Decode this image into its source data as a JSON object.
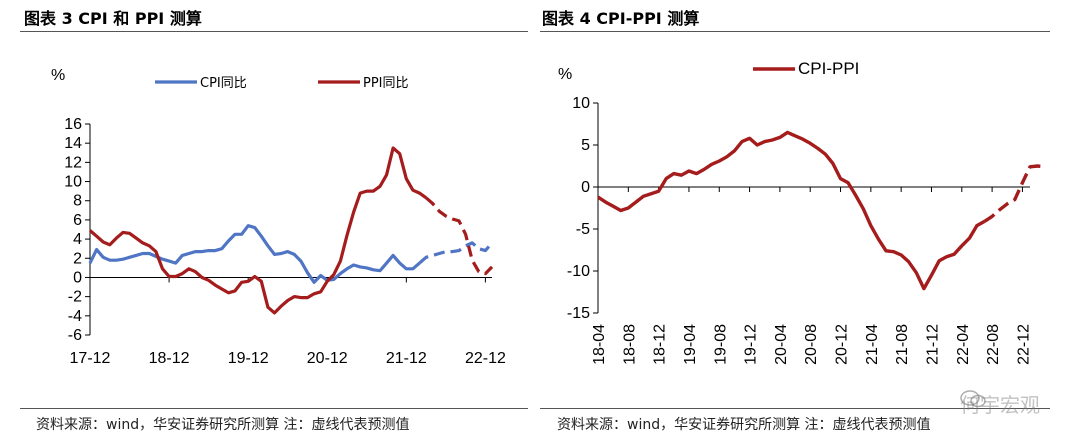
{
  "figure_left": {
    "title": "图表 3 CPI 和 PPI 测算",
    "source": "资料来源：wind，华安证券研究所测算 注：虚线代表预测值"
  },
  "figure_right": {
    "title": "图表 4 CPI-PPI 测算",
    "source": "资料来源：wind，华安证券研究所测算 注：虚线代表预测值"
  },
  "watermark": {
    "text": "何宇宏观",
    "icon": "wechat-icon"
  },
  "chart_data": [
    {
      "type": "line",
      "unit_label": "%",
      "ylim": [
        -6,
        16
      ],
      "yticks": [
        -6,
        -4,
        -2,
        0,
        2,
        4,
        6,
        8,
        10,
        12,
        14,
        16
      ],
      "xlim": [
        0,
        61
      ],
      "x_ticks": [
        {
          "label": "17-12",
          "index": 0
        },
        {
          "label": "18-12",
          "index": 12
        },
        {
          "label": "19-12",
          "index": 24
        },
        {
          "label": "20-12",
          "index": 36
        },
        {
          "label": "21-12",
          "index": 48
        },
        {
          "label": "22-12",
          "index": 60
        }
      ],
      "legend": "top",
      "series": [
        {
          "name": "CPI同比",
          "color": "#4f75c4",
          "actual": [
            [
              0,
              1.5
            ],
            [
              1,
              2.9
            ],
            [
              2,
              2.1
            ],
            [
              3,
              1.8
            ],
            [
              4,
              1.8
            ],
            [
              5,
              1.9
            ],
            [
              6,
              2.1
            ],
            [
              7,
              2.3
            ],
            [
              8,
              2.5
            ],
            [
              9,
              2.5
            ],
            [
              10,
              2.2
            ],
            [
              11,
              1.9
            ],
            [
              12,
              1.7
            ],
            [
              13,
              1.5
            ],
            [
              14,
              2.3
            ],
            [
              15,
              2.5
            ],
            [
              16,
              2.7
            ],
            [
              17,
              2.7
            ],
            [
              18,
              2.8
            ],
            [
              19,
              2.8
            ],
            [
              20,
              3.0
            ],
            [
              21,
              3.8
            ],
            [
              22,
              4.5
            ],
            [
              23,
              4.5
            ],
            [
              24,
              5.4
            ],
            [
              25,
              5.2
            ],
            [
              26,
              4.3
            ],
            [
              27,
              3.3
            ],
            [
              28,
              2.4
            ],
            [
              29,
              2.5
            ],
            [
              30,
              2.7
            ],
            [
              31,
              2.4
            ],
            [
              32,
              1.7
            ],
            [
              33,
              0.5
            ],
            [
              34,
              -0.5
            ],
            [
              35,
              0.2
            ],
            [
              36,
              -0.3
            ],
            [
              37,
              -0.2
            ],
            [
              38,
              0.4
            ],
            [
              39,
              0.9
            ],
            [
              40,
              1.3
            ],
            [
              41,
              1.1
            ],
            [
              42,
              1.0
            ],
            [
              43,
              0.8
            ],
            [
              44,
              0.7
            ],
            [
              45,
              1.5
            ],
            [
              46,
              2.3
            ],
            [
              47,
              1.5
            ],
            [
              48,
              0.9
            ],
            [
              49,
              0.9
            ],
            [
              50,
              1.5
            ]
          ],
          "forecast": [
            [
              50,
              1.5
            ],
            [
              51,
              2.1
            ],
            [
              52,
              2.3
            ],
            [
              53,
              2.5
            ],
            [
              54,
              2.7
            ],
            [
              55,
              2.7
            ],
            [
              56,
              2.8
            ],
            [
              57,
              3.3
            ],
            [
              58,
              3.6
            ],
            [
              59,
              3.0
            ],
            [
              60,
              2.8
            ],
            [
              61,
              3.6
            ]
          ]
        },
        {
          "name": "PPI同比",
          "color": "#a51c1c",
          "actual": [
            [
              0,
              4.9
            ],
            [
              1,
              4.3
            ],
            [
              2,
              3.7
            ],
            [
              3,
              3.4
            ],
            [
              4,
              4.1
            ],
            [
              5,
              4.7
            ],
            [
              6,
              4.6
            ],
            [
              7,
              4.1
            ],
            [
              8,
              3.6
            ],
            [
              9,
              3.3
            ],
            [
              10,
              2.7
            ],
            [
              11,
              0.9
            ],
            [
              12,
              0.1
            ],
            [
              13,
              0.1
            ],
            [
              14,
              0.4
            ],
            [
              15,
              0.9
            ],
            [
              16,
              0.6
            ],
            [
              17,
              0.0
            ],
            [
              18,
              -0.3
            ],
            [
              19,
              -0.8
            ],
            [
              20,
              -1.2
            ],
            [
              21,
              -1.6
            ],
            [
              22,
              -1.4
            ],
            [
              23,
              -0.5
            ],
            [
              24,
              -0.4
            ],
            [
              25,
              0.1
            ],
            [
              26,
              -0.4
            ],
            [
              27,
              -3.1
            ],
            [
              28,
              -3.7
            ],
            [
              29,
              -3.0
            ],
            [
              30,
              -2.4
            ],
            [
              31,
              -2.0
            ],
            [
              32,
              -2.1
            ],
            [
              33,
              -2.1
            ],
            [
              34,
              -1.7
            ],
            [
              35,
              -1.5
            ],
            [
              36,
              -0.4
            ],
            [
              37,
              0.3
            ],
            [
              38,
              1.7
            ],
            [
              39,
              4.4
            ],
            [
              40,
              6.8
            ],
            [
              41,
              8.8
            ],
            [
              42,
              9.0
            ],
            [
              43,
              9.0
            ],
            [
              44,
              9.5
            ],
            [
              45,
              10.7
            ],
            [
              46,
              13.5
            ],
            [
              47,
              12.9
            ],
            [
              48,
              10.3
            ],
            [
              49,
              9.1
            ],
            [
              50,
              8.8
            ],
            [
              51,
              8.3
            ]
          ],
          "forecast": [
            [
              51,
              8.3
            ],
            [
              52,
              7.7
            ],
            [
              53,
              6.9
            ],
            [
              54,
              6.4
            ],
            [
              55,
              6.1
            ],
            [
              56,
              5.9
            ],
            [
              57,
              4.5
            ],
            [
              58,
              1.8
            ],
            [
              59,
              0.6
            ],
            [
              60,
              0.4
            ],
            [
              61,
              1.1
            ]
          ]
        }
      ]
    },
    {
      "type": "line",
      "unit_label": "%",
      "ylim": [
        -15,
        10
      ],
      "yticks": [
        -15,
        -10,
        -5,
        0,
        5,
        10
      ],
      "xlim": [
        0,
        57
      ],
      "x_ticks": [
        {
          "label": "18-04",
          "index": 0
        },
        {
          "label": "18-08",
          "index": 4
        },
        {
          "label": "18-12",
          "index": 8
        },
        {
          "label": "19-04",
          "index": 12
        },
        {
          "label": "19-08",
          "index": 16
        },
        {
          "label": "19-12",
          "index": 20
        },
        {
          "label": "20-04",
          "index": 24
        },
        {
          "label": "20-08",
          "index": 28
        },
        {
          "label": "20-12",
          "index": 32
        },
        {
          "label": "21-04",
          "index": 36
        },
        {
          "label": "21-08",
          "index": 40
        },
        {
          "label": "21-12",
          "index": 44
        },
        {
          "label": "22-04",
          "index": 48
        },
        {
          "label": "22-08",
          "index": 52
        },
        {
          "label": "22-12",
          "index": 56
        }
      ],
      "legend": "top",
      "series": [
        {
          "name": "CPI-PPI",
          "color": "#a51c1c",
          "actual": [
            [
              0,
              -1.2
            ],
            [
              1,
              -1.8
            ],
            [
              2,
              -2.3
            ],
            [
              3,
              -2.8
            ],
            [
              4,
              -2.5
            ],
            [
              5,
              -1.8
            ],
            [
              6,
              -1.1
            ],
            [
              7,
              -0.8
            ],
            [
              8,
              -0.5
            ],
            [
              9,
              1.0
            ],
            [
              10,
              1.6
            ],
            [
              11,
              1.4
            ],
            [
              12,
              1.9
            ],
            [
              13,
              1.6
            ],
            [
              14,
              2.1
            ],
            [
              15,
              2.7
            ],
            [
              16,
              3.1
            ],
            [
              17,
              3.6
            ],
            [
              18,
              4.3
            ],
            [
              19,
              5.4
            ],
            [
              20,
              5.8
            ],
            [
              21,
              5.0
            ],
            [
              22,
              5.4
            ],
            [
              23,
              5.6
            ],
            [
              24,
              5.9
            ],
            [
              25,
              6.5
            ],
            [
              26,
              6.1
            ],
            [
              27,
              5.7
            ],
            [
              28,
              5.2
            ],
            [
              29,
              4.6
            ],
            [
              30,
              3.9
            ],
            [
              31,
              2.8
            ],
            [
              32,
              1.0
            ],
            [
              33,
              0.5
            ],
            [
              34,
              -1.0
            ],
            [
              35,
              -2.6
            ],
            [
              36,
              -4.6
            ],
            [
              37,
              -6.2
            ],
            [
              38,
              -7.6
            ],
            [
              39,
              -7.7
            ],
            [
              40,
              -8.1
            ],
            [
              41,
              -8.9
            ],
            [
              42,
              -10.2
            ],
            [
              43,
              -12.1
            ],
            [
              44,
              -10.5
            ],
            [
              45,
              -8.8
            ],
            [
              46,
              -8.3
            ],
            [
              47,
              -8.0
            ],
            [
              48,
              -7.0
            ],
            [
              49,
              -6.1
            ],
            [
              50,
              -4.6
            ],
            [
              51,
              -4.1
            ]
          ],
          "forecast": [
            [
              51,
              -4.1
            ],
            [
              52,
              -3.5
            ],
            [
              53,
              -2.7
            ],
            [
              54,
              -2.0
            ],
            [
              55,
              -1.5
            ],
            [
              56,
              0.5
            ],
            [
              57,
              2.4
            ],
            [
              58,
              2.5
            ],
            [
              59,
              2.4
            ]
          ]
        }
      ]
    }
  ]
}
